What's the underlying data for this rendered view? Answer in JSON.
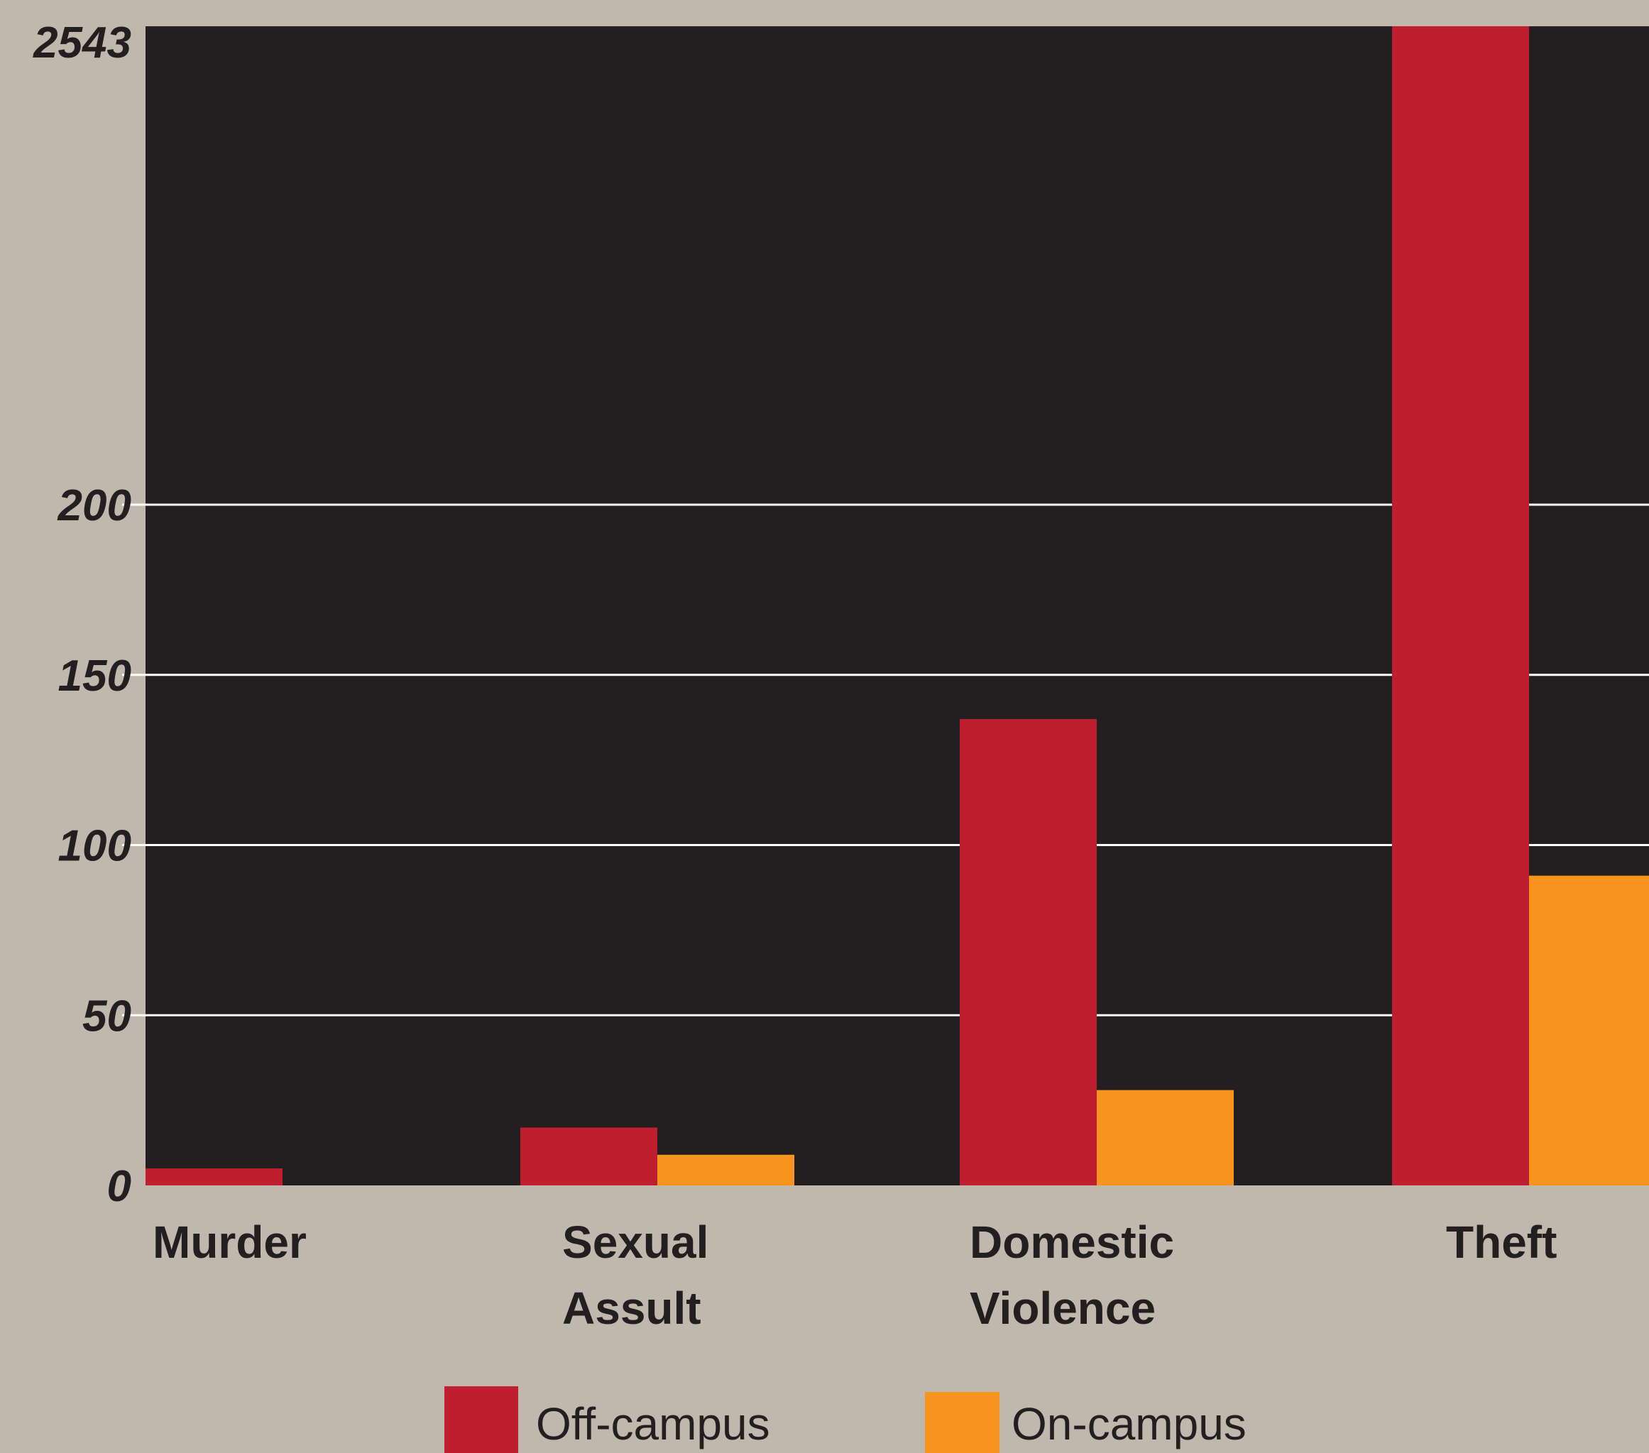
{
  "chart_data": {
    "type": "bar",
    "categories": [
      "Murder",
      "Sexual Assult",
      "Domestic Violence",
      "Theft"
    ],
    "category_lines": [
      [
        "Murder"
      ],
      [
        "Sexual",
        "Assult"
      ],
      [
        "Domestic",
        "Violence"
      ],
      [
        "Theft"
      ]
    ],
    "series": [
      {
        "name": "Off-campus",
        "color": "#be1e2d",
        "values": [
          5,
          17,
          137,
          2543
        ]
      },
      {
        "name": "On-campus",
        "color": "#f7941d",
        "values": [
          0,
          9,
          28,
          91
        ]
      }
    ],
    "yticks": [
      0,
      50,
      100,
      150,
      200,
      2543
    ],
    "ylim": [
      0,
      2543
    ],
    "axis_break": "the y-axis is linear from 0 to 200, then jumps to the top tick 2543",
    "plot_background": "#231f20",
    "page_background": "#c0b8ad",
    "gridlines": "white horizontal lines at 50, 100, 150 and 200",
    "legend_position": "bottom"
  }
}
